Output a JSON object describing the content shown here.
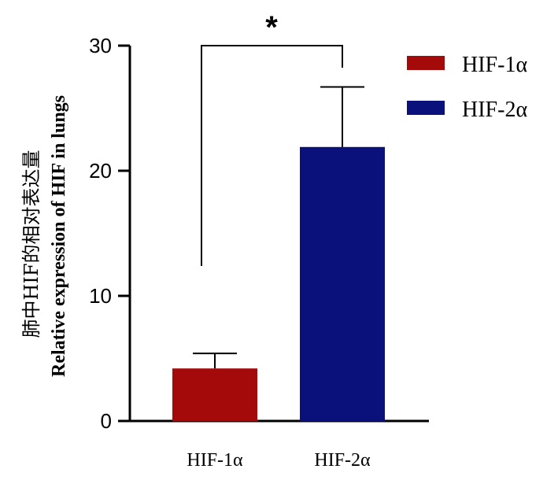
{
  "chart_data": {
    "type": "bar",
    "categories": [
      "HIF-1α",
      "HIF-2α"
    ],
    "values": [
      4.2,
      21.9
    ],
    "error": [
      1.2,
      4.8
    ],
    "colors": [
      "#a50a0a",
      "#0a117a"
    ],
    "ylabel_line1": "肺中HIF的相对表达量",
    "ylabel_line2": "Relative expression of HIF  in lungs",
    "ylim": [
      0,
      30
    ],
    "yticks": [
      "0",
      "10",
      "20",
      "30"
    ],
    "legend": [
      {
        "label": "HIF-1α",
        "color": "#a50a0a"
      },
      {
        "label": "HIF-2α",
        "color": "#0a117a"
      }
    ],
    "legend_position": "top-right",
    "significance": {
      "label": "*",
      "between": [
        "HIF-1α",
        "HIF-2α"
      ]
    },
    "grid": false
  }
}
